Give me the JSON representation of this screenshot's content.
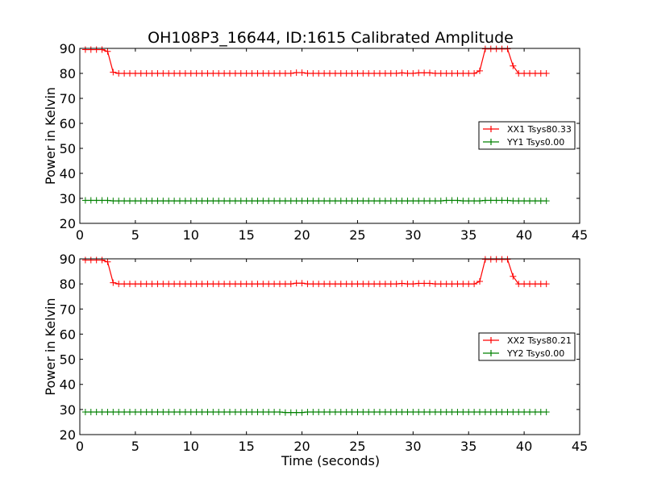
{
  "chart_data": [
    {
      "type": "line",
      "title": "OH108P3_16644, ID:1615 Calibrated Amplitude",
      "xlabel": "",
      "ylabel": "Power in Kelvin",
      "xlim": [
        0,
        45
      ],
      "ylim": [
        20,
        90
      ],
      "xticks": [
        "0",
        "5",
        "10",
        "15",
        "20",
        "25",
        "30",
        "35",
        "40",
        "45"
      ],
      "yticks": [
        "20",
        "30",
        "40",
        "50",
        "60",
        "70",
        "80",
        "90"
      ],
      "legend_position": "center-right",
      "series": [
        {
          "name": "XX1 Tsys80.33",
          "color": "#ff0000",
          "values": [
            89.5,
            89.5,
            89.5,
            89.5,
            88.8,
            80.5,
            80,
            80,
            80,
            80,
            80,
            80,
            80,
            80,
            80,
            80,
            80,
            80,
            80,
            80,
            80,
            80,
            80,
            80,
            80,
            80,
            80,
            80,
            80,
            80,
            80,
            80,
            80,
            80,
            80,
            80,
            80,
            80,
            80.3,
            80.3,
            80,
            80,
            80,
            80,
            80,
            80,
            80,
            80,
            80,
            80,
            80,
            80,
            80,
            80,
            80,
            80,
            80,
            80.2,
            80,
            80,
            80.2,
            80.2,
            80.2,
            80,
            80,
            80,
            80,
            80,
            80,
            80,
            80,
            81,
            89.8,
            89.8,
            89.8,
            89.8,
            89.8,
            83,
            80,
            80,
            80,
            80,
            80,
            80
          ]
        },
        {
          "name": "YY1 Tsys0.00",
          "color": "#008000",
          "values": [
            29.2,
            29.2,
            29.2,
            29.2,
            29.2,
            29,
            29,
            29,
            29,
            29,
            29,
            29,
            29,
            29,
            29,
            29,
            29,
            29,
            29,
            29,
            29,
            29,
            29,
            29,
            29,
            29,
            29,
            29,
            29,
            29,
            29,
            29,
            29,
            29,
            29,
            29,
            29,
            29,
            29,
            29,
            29,
            29,
            29,
            29,
            29,
            29,
            29,
            29,
            29,
            29,
            29,
            29,
            29,
            29,
            29,
            29,
            29,
            29,
            29,
            29,
            29,
            29,
            29,
            29,
            29,
            29.2,
            29.2,
            29.2,
            29,
            29,
            29,
            29,
            29.2,
            29.2,
            29.2,
            29.2,
            29.2,
            29,
            29,
            29,
            29,
            29,
            29,
            29
          ]
        }
      ]
    },
    {
      "type": "line",
      "title": "",
      "xlabel": "Time (seconds)",
      "ylabel": "Power in Kelvin",
      "xlim": [
        0,
        45
      ],
      "ylim": [
        20,
        90
      ],
      "xticks": [
        "0",
        "5",
        "10",
        "15",
        "20",
        "25",
        "30",
        "35",
        "40",
        "45"
      ],
      "yticks": [
        "20",
        "30",
        "40",
        "50",
        "60",
        "70",
        "80",
        "90"
      ],
      "legend_position": "center-right",
      "series": [
        {
          "name": "XX2 Tsys80.21",
          "color": "#ff0000",
          "values": [
            89.5,
            89.5,
            89.5,
            89.5,
            88.8,
            80.5,
            80,
            80,
            80,
            80,
            80,
            80,
            80,
            80,
            80,
            80,
            80,
            80,
            80,
            80,
            80,
            80,
            80,
            80,
            80,
            80,
            80,
            80,
            80,
            80,
            80,
            80,
            80,
            80,
            80,
            80,
            80,
            80,
            80.3,
            80.3,
            80,
            80,
            80,
            80,
            80,
            80,
            80,
            80,
            80,
            80,
            80,
            80,
            80,
            80,
            80,
            80,
            80,
            80.2,
            80,
            80,
            80.2,
            80.2,
            80.2,
            80,
            80,
            80,
            80,
            80,
            80,
            80,
            80,
            81,
            89.8,
            89.8,
            89.8,
            89.8,
            89.8,
            83,
            80,
            80,
            80,
            80,
            80,
            80
          ]
        },
        {
          "name": "YY2 Tsys0.00",
          "color": "#008000",
          "values": [
            29,
            29,
            29,
            29,
            29,
            29,
            29,
            29,
            29,
            29,
            29,
            29,
            29,
            29,
            29,
            29,
            29,
            29,
            29,
            29,
            29,
            29,
            29,
            29,
            29,
            29,
            29,
            29,
            29,
            29,
            29,
            29,
            29,
            29,
            29,
            29,
            28.8,
            28.8,
            28.8,
            28.8,
            29,
            29,
            29,
            29,
            29,
            29,
            29,
            29,
            29,
            29,
            29,
            29,
            29,
            29,
            29,
            29,
            29,
            29,
            29,
            29,
            29,
            29,
            29,
            29,
            29,
            29,
            29,
            29,
            29,
            29,
            29,
            29,
            29,
            29,
            29,
            29,
            29,
            29,
            29,
            29,
            29,
            29,
            29,
            29
          ]
        }
      ]
    }
  ],
  "x_values": [
    0.5,
    1,
    1.5,
    2,
    2.5,
    3,
    3.5,
    4,
    4.5,
    5,
    5.5,
    6,
    6.5,
    7,
    7.5,
    8,
    8.5,
    9,
    9.5,
    10,
    10.5,
    11,
    11.5,
    12,
    12.5,
    13,
    13.5,
    14,
    14.5,
    15,
    15.5,
    16,
    16.5,
    17,
    17.5,
    18,
    18.5,
    19,
    19.5,
    20,
    20.5,
    21,
    21.5,
    22,
    22.5,
    23,
    23.5,
    24,
    24.5,
    25,
    25.5,
    26,
    26.5,
    27,
    27.5,
    28,
    28.5,
    29,
    29.5,
    30,
    30.5,
    31,
    31.5,
    32,
    32.5,
    33,
    33.5,
    34,
    34.5,
    35,
    35.5,
    36,
    36.5,
    37,
    37.5,
    38,
    38.5,
    39,
    39.5,
    40,
    40.5,
    41,
    41.5,
    42
  ]
}
